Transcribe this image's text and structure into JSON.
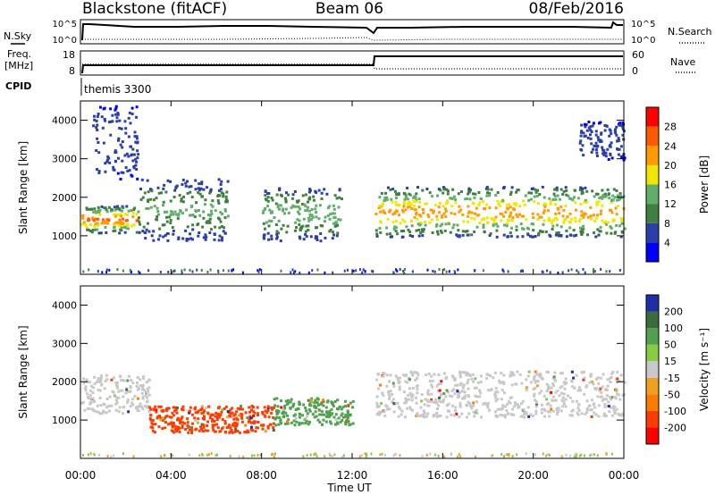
{
  "header": {
    "station": "Blackstone (fitACF)",
    "beam": "Beam 06",
    "date": "08/Feb/2016"
  },
  "sky_panel": {
    "left_label": "N.Sky",
    "right_label": "N.Search",
    "left_ticks": [
      "10^5",
      "10^0"
    ],
    "right_ticks": [
      "10^5",
      "10^0"
    ]
  },
  "freq_panel": {
    "left_label": "Freq.",
    "left_unit": "[MHz]",
    "right_label": "Nave",
    "left_ticks": [
      "18",
      "8"
    ],
    "right_ticks": [
      "60",
      "0"
    ]
  },
  "cpid": {
    "label": "CPID",
    "value": "themis 3300"
  },
  "chart_data": [
    {
      "type": "heatmap",
      "name": "power",
      "ylabel": "Slant Range [km]",
      "xlabel": "Time UT",
      "x_ticks": [
        "00:00",
        "04:00",
        "08:00",
        "12:00",
        "16:00",
        "20:00",
        "00:00"
      ],
      "y_ticks": [
        1000,
        2000,
        3000,
        4000
      ],
      "ylim": [
        0,
        4500
      ],
      "colorbar": {
        "label": "Power [dB]",
        "ticks": [
          "4",
          "8",
          "12",
          "16",
          "20",
          "24",
          "28"
        ],
        "colors": [
          "#0000ff",
          "#2a3fa8",
          "#3f7f3f",
          "#5fae6a",
          "#f2e600",
          "#ff9a00",
          "#ff5a00",
          "#ff0000"
        ]
      },
      "features": [
        {
          "hours": [
            0.0,
            2.5
          ],
          "range_km": [
            1100,
            1800
          ],
          "level_db": 24
        },
        {
          "hours": [
            2.5,
            6.5
          ],
          "range_km": [
            900,
            2500
          ],
          "level_db": 12
        },
        {
          "hours": [
            8.0,
            11.5
          ],
          "range_km": [
            900,
            2300
          ],
          "level_db": 14
        },
        {
          "hours": [
            13.0,
            24.0
          ],
          "range_km": [
            1000,
            2300
          ],
          "level_db": 22
        },
        {
          "hours": [
            0.5,
            2.5
          ],
          "range_km": [
            2500,
            4400
          ],
          "level_db": 6
        },
        {
          "hours": [
            22.0,
            24.0
          ],
          "range_km": [
            3000,
            4000
          ],
          "level_db": 6
        }
      ]
    },
    {
      "type": "heatmap",
      "name": "velocity",
      "ylabel": "Slant Range [km]",
      "xlabel": "Time UT",
      "x_ticks": [
        "00:00",
        "04:00",
        "08:00",
        "12:00",
        "16:00",
        "20:00",
        "00:00"
      ],
      "y_ticks": [
        1000,
        2000,
        3000,
        4000
      ],
      "ylim": [
        0,
        4500
      ],
      "colorbar": {
        "label": "Velocity [m s⁻¹]",
        "ticks": [
          "200",
          "100",
          "50",
          "15",
          "-15",
          "-50",
          "-100",
          "-200"
        ],
        "colors": [
          "#1f2ea6",
          "#3c6c3c",
          "#4fa04f",
          "#88cc44",
          "#c8c8c8",
          "#f0a020",
          "#ff7a00",
          "#ff3c00",
          "#ff0000"
        ]
      },
      "features": [
        {
          "hours": [
            0.0,
            3.0
          ],
          "range_km": [
            1200,
            2200
          ],
          "velocity": 0
        },
        {
          "hours": [
            3.0,
            8.5
          ],
          "range_km": [
            700,
            1400
          ],
          "velocity": -100
        },
        {
          "hours": [
            8.5,
            12.0
          ],
          "range_km": [
            900,
            1600
          ],
          "velocity": 50
        },
        {
          "hours": [
            13.0,
            24.0
          ],
          "range_km": [
            1100,
            2300
          ],
          "velocity": 0
        }
      ]
    }
  ]
}
